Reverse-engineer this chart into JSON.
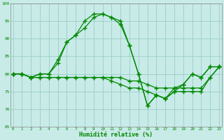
{
  "xlabel": "Humidité relative (%)",
  "ylim": [
    65,
    100
  ],
  "yticks": [
    65,
    70,
    75,
    80,
    85,
    90,
    95,
    100
  ],
  "xticks": [
    0,
    1,
    2,
    3,
    4,
    5,
    6,
    7,
    8,
    9,
    10,
    11,
    12,
    13,
    14,
    15,
    16,
    17,
    18,
    19,
    20,
    21,
    22,
    23
  ],
  "bg_color": "#c8ebe8",
  "grid_color": "#a0d0cc",
  "line_color": "#008800",
  "line1": [
    80,
    80,
    79,
    80,
    80,
    84,
    89,
    91,
    95,
    97,
    97,
    96,
    95,
    88,
    80,
    71,
    74,
    73,
    76,
    77,
    80,
    79,
    82,
    82
  ],
  "line2": [
    80,
    80,
    79,
    80,
    80,
    83,
    89,
    91,
    93,
    96,
    97,
    96,
    94,
    88,
    80,
    71,
    74,
    73,
    75,
    77,
    80,
    79,
    82,
    82
  ],
  "line3": [
    80,
    80,
    79,
    79,
    79,
    79,
    79,
    79,
    79,
    79,
    79,
    79,
    79,
    78,
    78,
    77,
    76,
    76,
    76,
    76,
    76,
    76,
    79,
    82
  ],
  "line4": [
    80,
    80,
    79,
    79,
    79,
    79,
    79,
    79,
    79,
    79,
    79,
    78,
    77,
    76,
    76,
    75,
    74,
    73,
    75,
    75,
    75,
    75,
    79,
    82
  ]
}
